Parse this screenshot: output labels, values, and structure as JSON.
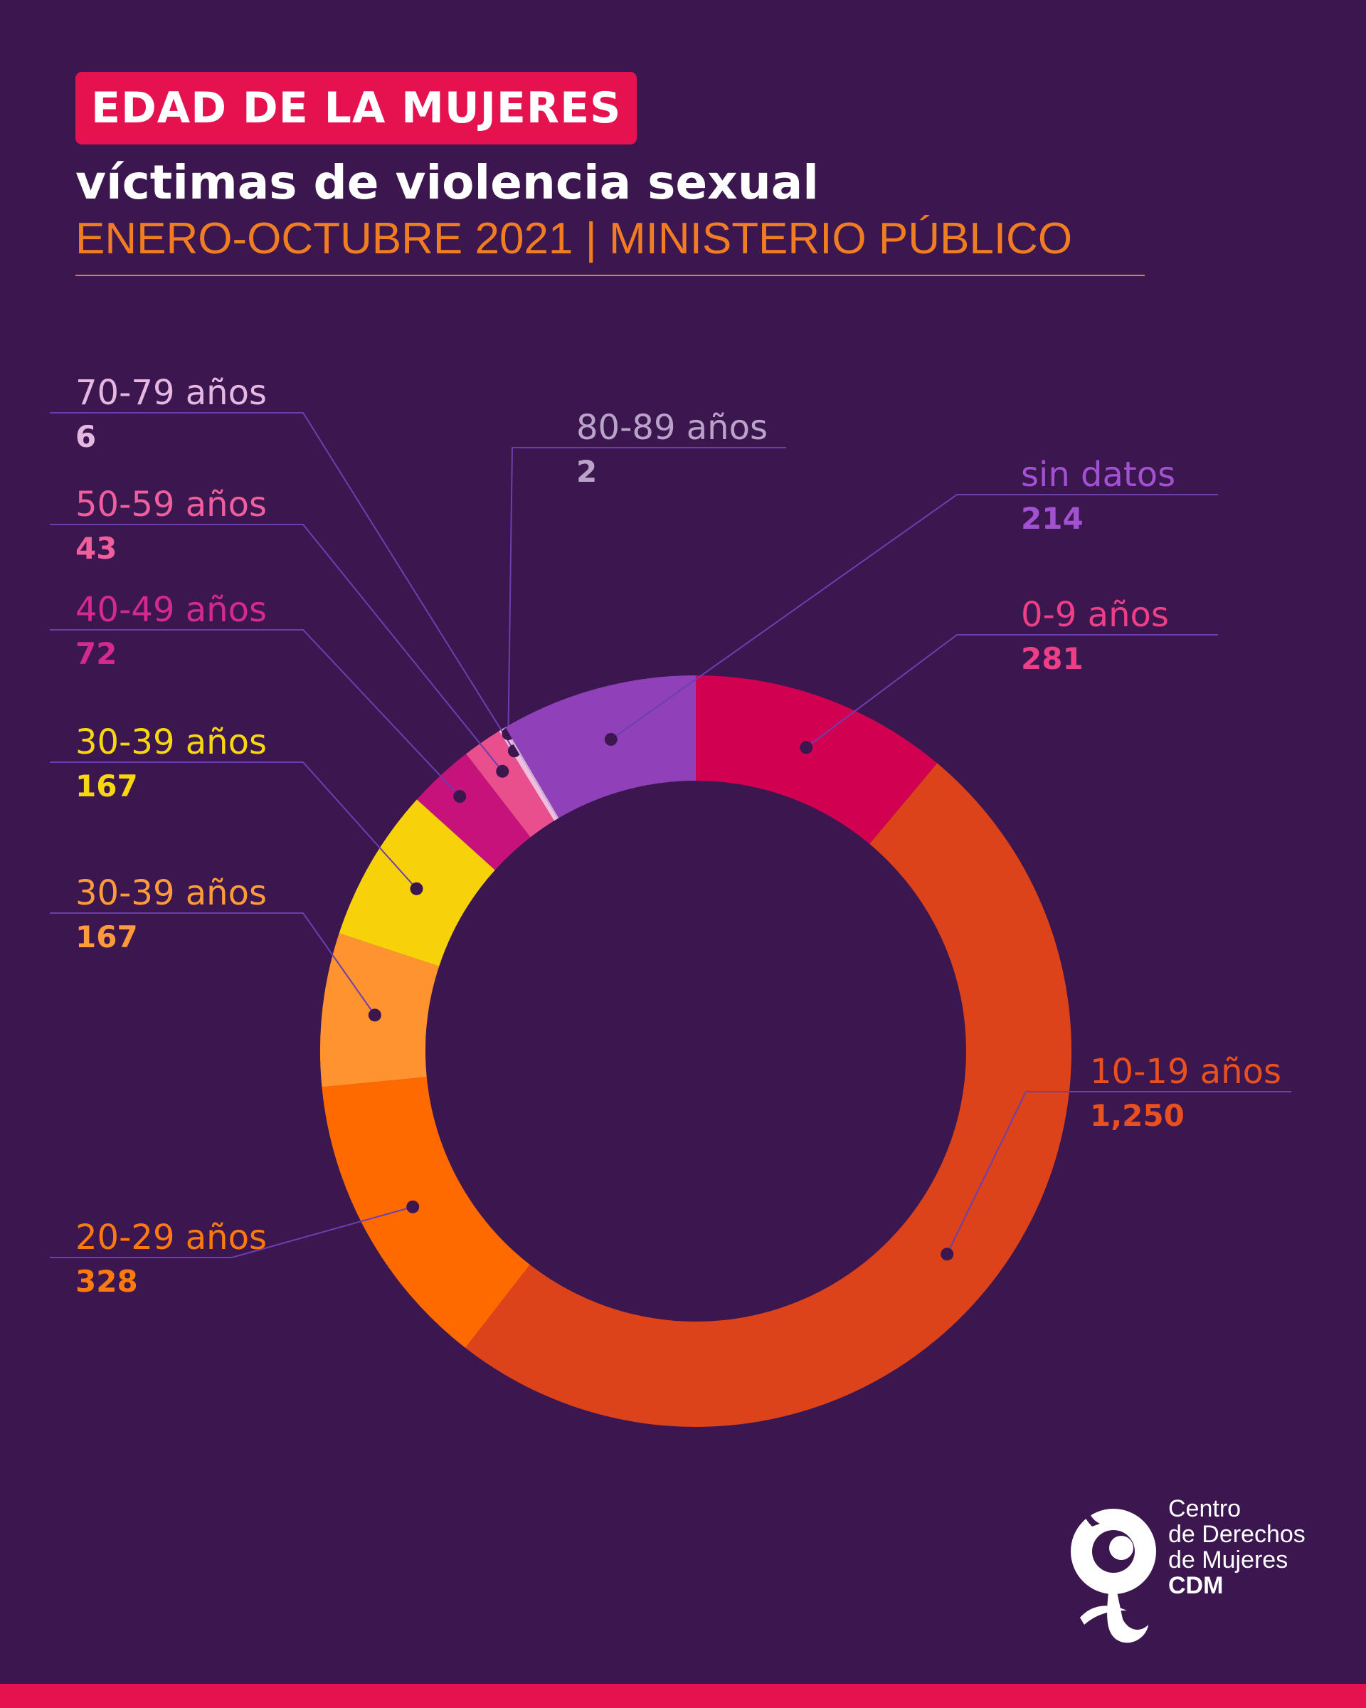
{
  "header": {
    "badge": "EDAD DE LA MUJERES",
    "subtitle": "víctimas de violencia sexual",
    "source": "ENERO-OCTUBRE 2021 | MINISTERIO PÚBLICO"
  },
  "chart_data": {
    "type": "pie",
    "variant": "donut",
    "title": "EDAD DE LA MUJERES",
    "series": [
      {
        "slices": [
          {
            "label": "0-9 años",
            "value": 281,
            "value_text": "281",
            "color": "#d10051",
            "text_color": "#ee3f86"
          },
          {
            "label": "10-19 años",
            "value": 1250,
            "value_text": "1,250",
            "color": "#dc431b",
            "text_color": "#e8501f"
          },
          {
            "label": "20-29 años",
            "value": 328,
            "value_text": "328",
            "color": "#ff6a00",
            "text_color": "#ff7a0e"
          },
          {
            "label": "30-39 años",
            "value": 167,
            "value_text": "167",
            "color": "#ff9330",
            "text_color": "#ff9b3a"
          },
          {
            "label": "30-39 años",
            "value": 167,
            "value_text": "167",
            "color": "#f7d20a",
            "text_color": "#f9d710"
          },
          {
            "label": "40-49 años",
            "value": 72,
            "value_text": "72",
            "color": "#c8127b",
            "text_color": "#d42a8d"
          },
          {
            "label": "50-59 años",
            "value": 43,
            "value_text": "43",
            "color": "#e94f8d",
            "text_color": "#ef5f9d"
          },
          {
            "label": "70-79 años",
            "value": 6,
            "value_text": "6",
            "color": "#f2bde0",
            "text_color": "#e6b7e1"
          },
          {
            "label": "80-89 años",
            "value": 2,
            "value_text": "2",
            "color": "#c8b4d8",
            "text_color": "#b9a3c9"
          },
          {
            "label": "sin datos",
            "value": 214,
            "value_text": "214",
            "color": "#9040b8",
            "text_color": "#a251d1"
          }
        ]
      }
    ]
  },
  "logo": {
    "line1": "Centro",
    "line2": "de Derechos",
    "line3": "de Mujeres",
    "line4": "CDM"
  }
}
